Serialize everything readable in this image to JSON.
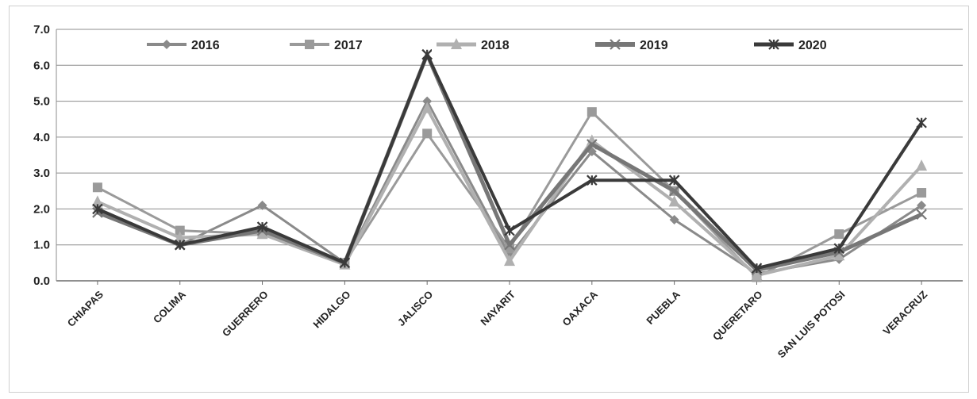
{
  "chart_data": {
    "type": "line",
    "categories": [
      "CHIAPAS",
      "COLIMA",
      "GUERRERO",
      "HIDALGO",
      "JALISCO",
      "NAYARIT",
      "OAXACA",
      "PUEBLA",
      "QUERETARO",
      "SAN LUIS POTOSI",
      "VERACRUZ"
    ],
    "series": [
      {
        "name": "2016",
        "values": [
          2.0,
          1.0,
          2.1,
          0.5,
          5.0,
          0.7,
          3.6,
          1.7,
          0.2,
          0.6,
          2.1
        ],
        "color": "#8a8a8a",
        "marker": "diamond"
      },
      {
        "name": "2017",
        "values": [
          2.6,
          1.4,
          1.3,
          0.5,
          4.1,
          0.9,
          4.7,
          2.5,
          0.1,
          1.3,
          2.45
        ],
        "color": "#9a9a9a",
        "marker": "square"
      },
      {
        "name": "2018",
        "values": [
          2.2,
          1.2,
          1.3,
          0.45,
          4.8,
          0.55,
          3.9,
          2.2,
          0.15,
          0.7,
          3.2
        ],
        "color": "#b0b0b0",
        "marker": "triangle"
      },
      {
        "name": "2019",
        "values": [
          1.9,
          1.0,
          1.4,
          0.5,
          6.3,
          1.0,
          3.8,
          2.5,
          0.3,
          0.8,
          1.85
        ],
        "color": "#777777",
        "marker": "cross"
      },
      {
        "name": "2020",
        "values": [
          2.0,
          1.0,
          1.5,
          0.5,
          6.3,
          1.4,
          2.8,
          2.8,
          0.35,
          0.9,
          4.4
        ],
        "color": "#3a3a3a",
        "marker": "star"
      }
    ],
    "yticks": [
      "0.0",
      "1.0",
      "2.0",
      "3.0",
      "4.0",
      "5.0",
      "6.0",
      "7.0"
    ],
    "ylim": [
      0,
      7
    ],
    "grid": true,
    "legend_position": "top"
  }
}
